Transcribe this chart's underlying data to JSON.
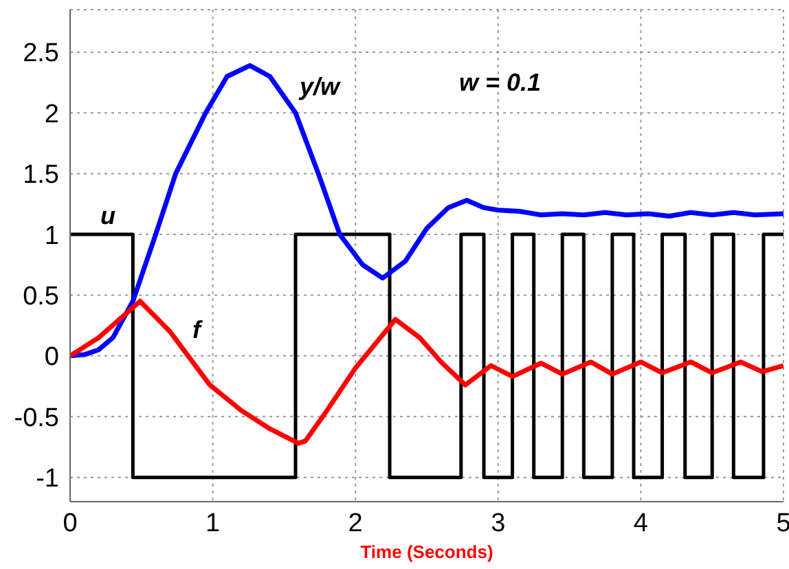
{
  "chart_data": {
    "type": "line",
    "xlabel": "Time (Seconds)",
    "xlim": [
      0,
      5
    ],
    "xticks": [
      0,
      1,
      2,
      3,
      4,
      5
    ],
    "ylim": [
      -1.2,
      2.85
    ],
    "yticks": [
      -1,
      -0.5,
      0,
      0.5,
      1,
      1.5,
      2,
      2.5
    ],
    "grid": true,
    "series": [
      {
        "type": "step",
        "color": "#000000",
        "x": [
          0,
          0.44,
          1.58,
          2.24,
          2.74,
          2.9,
          3.1,
          3.25,
          3.45,
          3.6,
          3.8,
          3.95,
          4.15,
          4.31,
          4.5,
          4.65,
          4.86,
          5
        ],
        "values": [
          1,
          -1,
          1,
          -1,
          1,
          -1,
          1,
          -1,
          1,
          -1,
          1,
          -1,
          1,
          -1,
          1,
          -1,
          1,
          1
        ]
      },
      {
        "color": "#0000ff",
        "x": [
          0,
          0.1,
          0.2,
          0.3,
          0.44,
          0.6,
          0.74,
          0.95,
          1.1,
          1.26,
          1.4,
          1.58,
          1.74,
          1.89,
          2.05,
          2.19,
          2.35,
          2.5,
          2.65,
          2.78,
          2.9,
          3.0,
          3.15,
          3.3,
          3.45,
          3.6,
          3.75,
          3.9,
          4.05,
          4.2,
          4.35,
          4.5,
          4.65,
          4.8,
          5.0
        ],
        "values": [
          0,
          0.01,
          0.05,
          0.15,
          0.45,
          1.0,
          1.5,
          2.0,
          2.3,
          2.39,
          2.3,
          2.0,
          1.5,
          1.0,
          0.75,
          0.64,
          0.78,
          1.05,
          1.22,
          1.28,
          1.22,
          1.2,
          1.19,
          1.16,
          1.17,
          1.16,
          1.18,
          1.16,
          1.17,
          1.15,
          1.18,
          1.16,
          1.18,
          1.16,
          1.17
        ]
      },
      {
        "color": "#ff0000",
        "x": [
          0,
          0.2,
          0.49,
          0.7,
          0.98,
          1.2,
          1.4,
          1.6,
          1.65,
          1.8,
          2.0,
          2.28,
          2.45,
          2.6,
          2.77,
          2.95,
          3.1,
          3.3,
          3.45,
          3.65,
          3.8,
          4.0,
          4.15,
          4.35,
          4.5,
          4.7,
          4.85,
          5.0
        ],
        "values": [
          0,
          0.15,
          0.45,
          0.2,
          -0.24,
          -0.45,
          -0.6,
          -0.72,
          -0.7,
          -0.45,
          -0.1,
          0.3,
          0.15,
          -0.05,
          -0.24,
          -0.08,
          -0.17,
          -0.06,
          -0.15,
          -0.05,
          -0.15,
          -0.05,
          -0.14,
          -0.05,
          -0.14,
          -0.05,
          -0.13,
          -0.08
        ]
      }
    ],
    "annotations": [
      "u",
      "y/w",
      "f",
      "w = 0.1"
    ]
  }
}
